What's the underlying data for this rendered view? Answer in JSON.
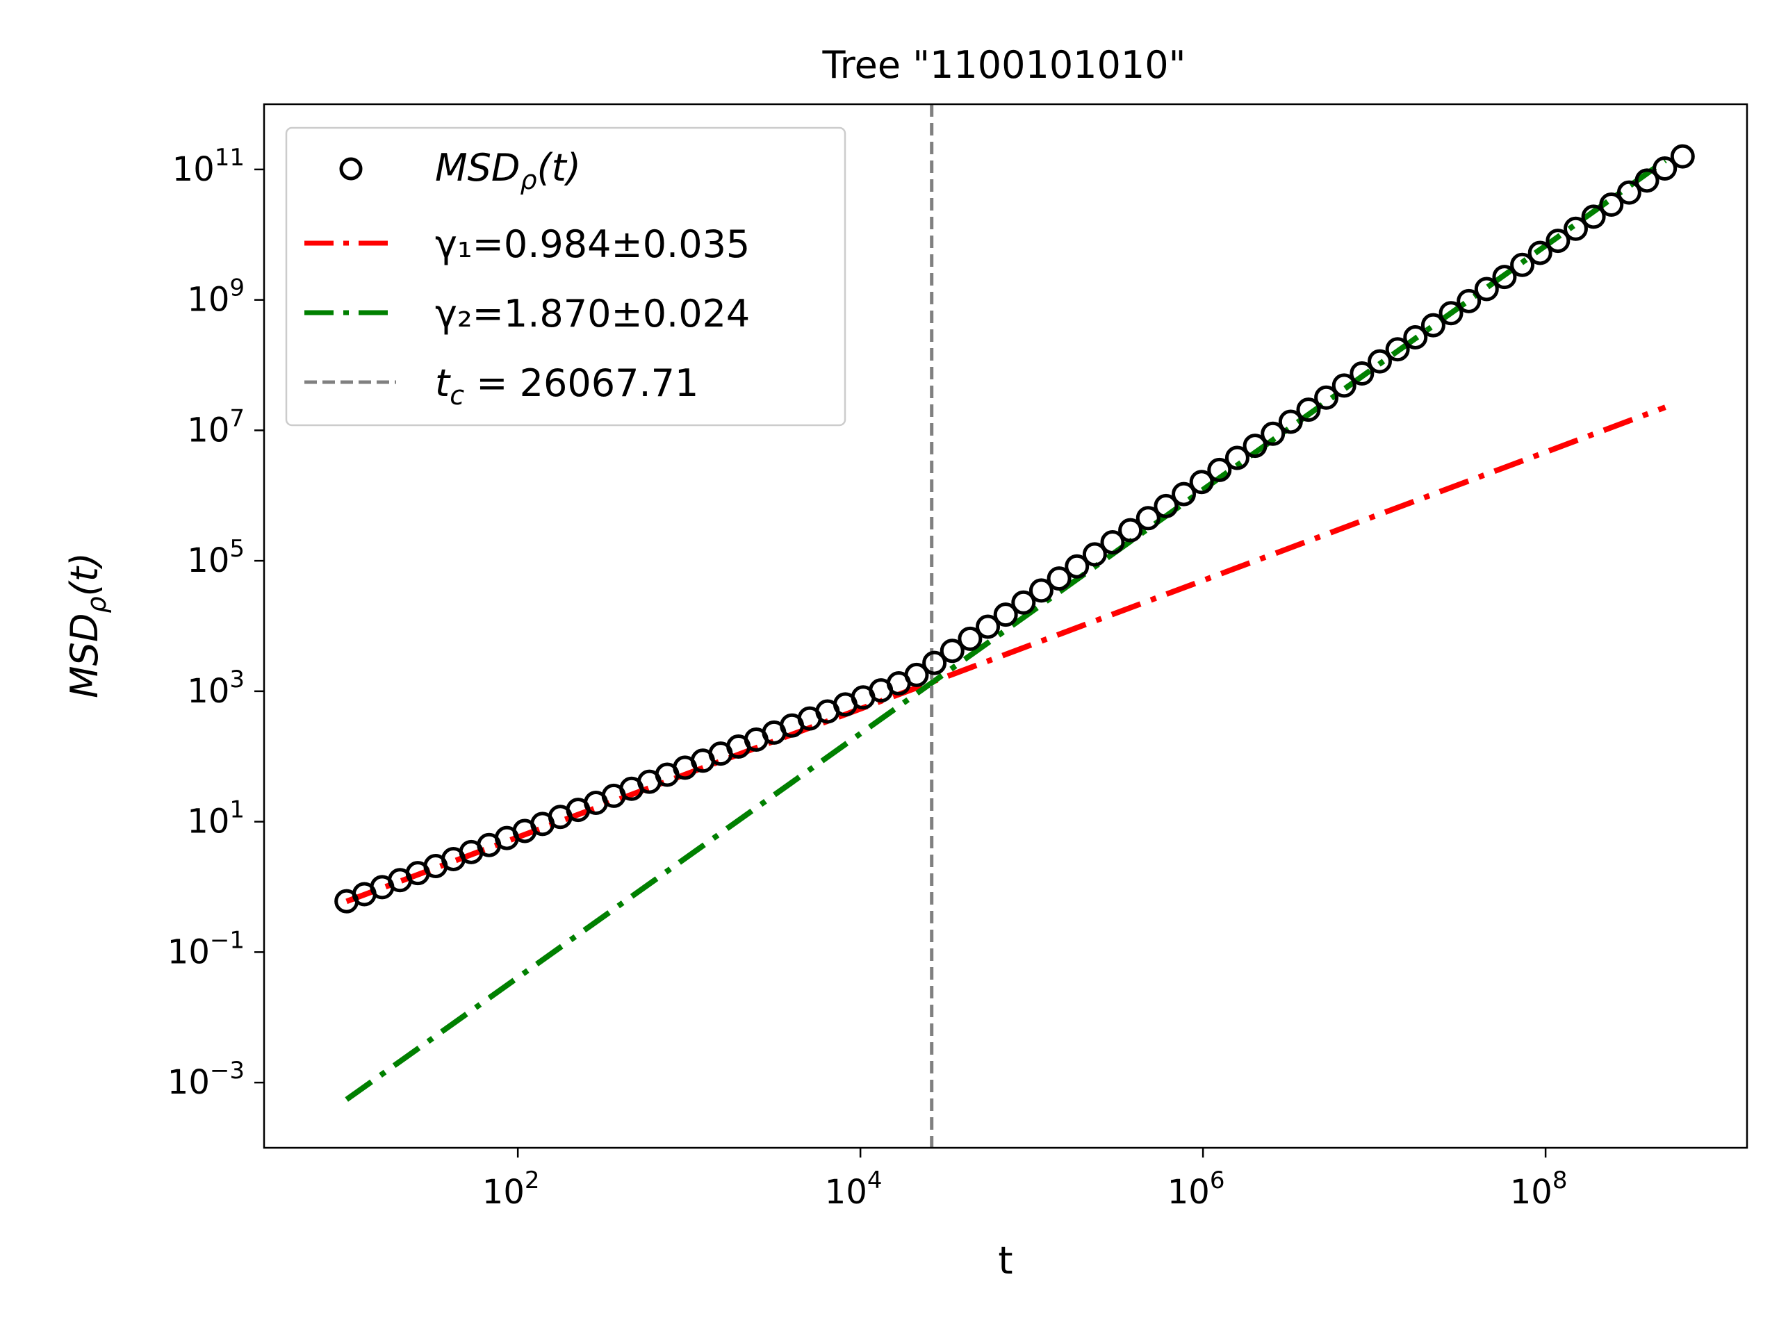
{
  "chart_data": {
    "type": "scatter",
    "title": "Tree \"1100101010\"",
    "xlabel": "t",
    "ylabel": "MSD_ρ(t)",
    "xscale": "log",
    "yscale": "log",
    "xlim": [
      3.3,
      1500000000.0
    ],
    "ylim": [
      0.0001,
      1000000000000.0
    ],
    "x_ticks": [
      {
        "value": 100,
        "base": "10",
        "exp": "2"
      },
      {
        "value": 10000,
        "base": "10",
        "exp": "4"
      },
      {
        "value": 1000000,
        "base": "10",
        "exp": "6"
      },
      {
        "value": 100000000,
        "base": "10",
        "exp": "8"
      }
    ],
    "y_ticks": [
      {
        "value": 0.001,
        "base": "10",
        "exp": "−3"
      },
      {
        "value": 0.1,
        "base": "10",
        "exp": "−1"
      },
      {
        "value": 10,
        "base": "10",
        "exp": "1"
      },
      {
        "value": 1000,
        "base": "10",
        "exp": "3"
      },
      {
        "value": 100000,
        "base": "10",
        "exp": "5"
      },
      {
        "value": 10000000,
        "base": "10",
        "exp": "7"
      },
      {
        "value": 1000000000,
        "base": "10",
        "exp": "9"
      },
      {
        "value": 100000000000,
        "base": "10",
        "exp": "11"
      }
    ],
    "grid": false,
    "legend_position": "top-left",
    "series": [
      {
        "name": "MSD_ρ(t)",
        "kind": "markers",
        "marker": "open-circle",
        "color": "#000000",
        "log10_x_range": [
          1.0,
          8.8
        ],
        "point_count": 76,
        "piecewise_log10_y": [
          {
            "log10_x": 1.0,
            "log10_y": -0.22
          },
          {
            "log10_x": 4.3,
            "log10_y": 3.2
          },
          {
            "log10_x": 8.8,
            "log10_y": 11.2
          }
        ]
      },
      {
        "name": "γ₁=0.984±0.035",
        "kind": "line",
        "style": "dash-dot",
        "color": "#ff0000",
        "exponent": 0.984,
        "x_range": [
          10,
          500000000
        ],
        "y_at_x_start": 0.6
      },
      {
        "name": "γ₂=1.870±0.024",
        "kind": "line",
        "style": "dash-dot",
        "color": "#008000",
        "exponent": 1.87,
        "x_range": [
          10,
          500000000
        ],
        "y_at_x_start": 0.00055
      },
      {
        "name": "t_c = 26067.71",
        "kind": "vline",
        "style": "dashed",
        "color": "#808080",
        "x": 26067.71
      }
    ]
  },
  "legend": {
    "items": [
      {
        "name": "MSD",
        "sub": "ρ",
        "suffix": "(t)"
      },
      {
        "text": "γ₁=0.984±0.035"
      },
      {
        "text": "γ₂=1.870±0.024"
      },
      {
        "name": "t",
        "sub": "c",
        "suffix": " = 26067.71"
      }
    ]
  },
  "ylabel_parts": {
    "name": "MSD",
    "sub": "ρ",
    "suffix": "(t)"
  }
}
